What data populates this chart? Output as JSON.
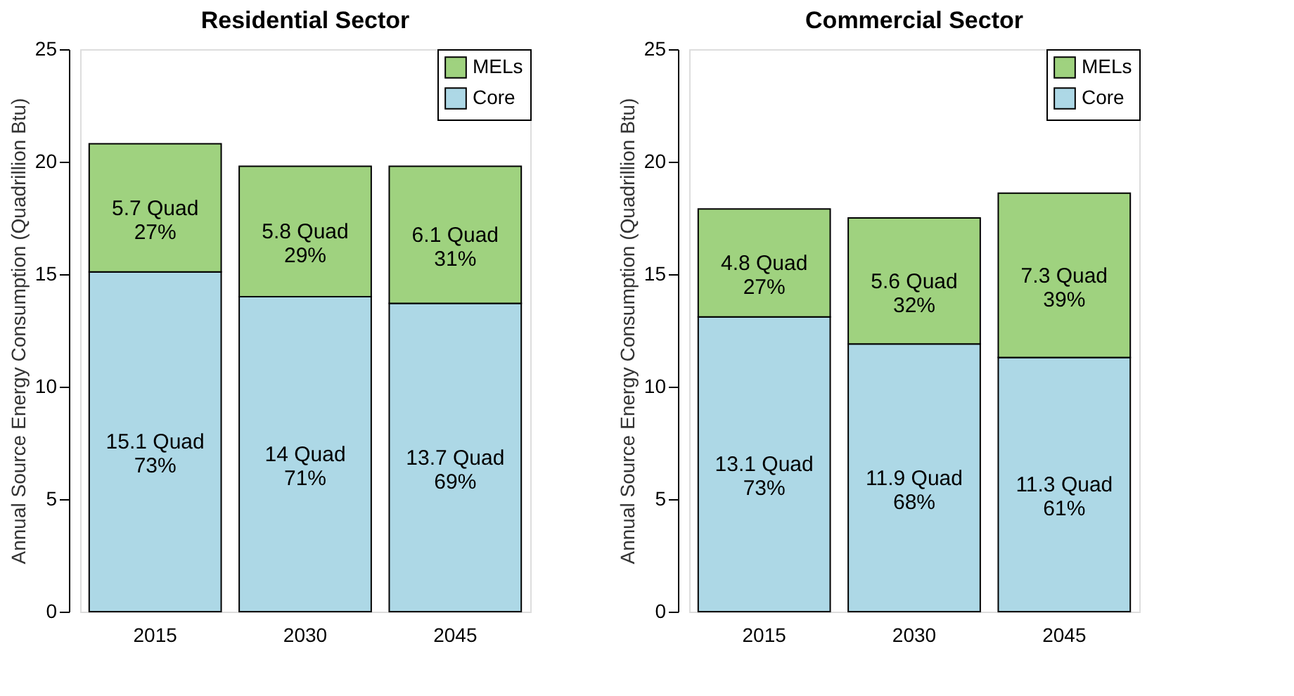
{
  "chart_data": [
    {
      "type": "bar",
      "title": "Residential Sector",
      "ylabel": "Annual Source Energy Consumption (Quadrillion Btu)",
      "categories": [
        "2015",
        "2030",
        "2045"
      ],
      "stacked": true,
      "ylim": [
        0,
        25
      ],
      "yticks": [
        0,
        5,
        10,
        15,
        20,
        25
      ],
      "grid": false,
      "legend": "top right",
      "series": [
        {
          "name": "Core",
          "color": "#add8e6",
          "values": [
            15.1,
            14,
            13.7
          ],
          "value_labels": [
            "15.1 Quad\n73%",
            "14 Quad\n71%",
            "13.7 Quad\n69%"
          ]
        },
        {
          "name": "MELs",
          "color": "#9fd27f",
          "values": [
            5.7,
            5.8,
            6.1
          ],
          "value_labels": [
            "5.7 Quad\n27%",
            "5.8 Quad\n29%",
            "6.1 Quad\n31%"
          ]
        }
      ]
    },
    {
      "type": "bar",
      "title": "Commercial Sector",
      "ylabel": "Annual Source Energy Consumption (Quadrillion Btu)",
      "categories": [
        "2015",
        "2030",
        "2045"
      ],
      "stacked": true,
      "ylim": [
        0,
        25
      ],
      "yticks": [
        0,
        5,
        10,
        15,
        20,
        25
      ],
      "grid": false,
      "legend": "top right",
      "series": [
        {
          "name": "Core",
          "color": "#add8e6",
          "values": [
            13.1,
            11.9,
            11.3
          ],
          "value_labels": [
            "13.1 Quad\n73%",
            "11.9 Quad\n68%",
            "11.3 Quad\n61%"
          ]
        },
        {
          "name": "MELs",
          "color": "#9fd27f",
          "values": [
            4.8,
            5.6,
            7.3
          ],
          "value_labels": [
            "4.8 Quad\n27%",
            "5.6 Quad\n32%",
            "7.3 Quad\n39%"
          ]
        }
      ]
    }
  ]
}
